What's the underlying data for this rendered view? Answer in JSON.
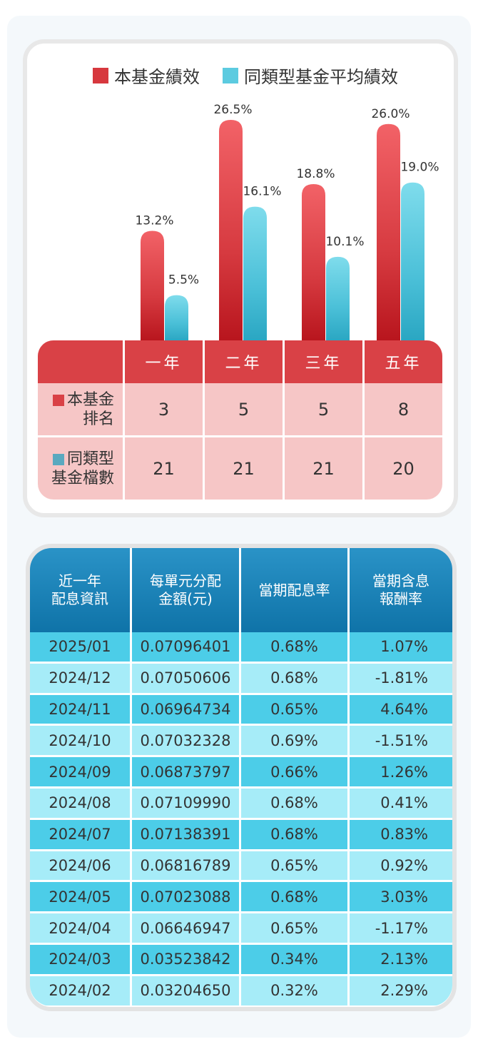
{
  "chart_data": {
    "type": "bar",
    "categories": [
      "一年",
      "二年",
      "三年",
      "五年"
    ],
    "series": [
      {
        "name": "本基金績效",
        "values": [
          13.2,
          26.5,
          18.8,
          26.0
        ],
        "labels": [
          "13.2%",
          "26.5%",
          "18.8%",
          "26.0%"
        ],
        "color": "#e2444a"
      },
      {
        "name": "同類型基金平均績效",
        "values": [
          5.5,
          16.1,
          10.1,
          19.0
        ],
        "labels": [
          "5.5%",
          "16.1%",
          "10.1%",
          "19.0%"
        ],
        "color": "#5ccbe0"
      }
    ],
    "legend": "top"
  },
  "ranking": {
    "header": [
      "",
      "一年",
      "二年",
      "三年",
      "五年"
    ],
    "rows": [
      {
        "label_lines": [
          "本基金",
          "排名"
        ],
        "color": "#d94146",
        "values": [
          "3",
          "5",
          "5",
          "8"
        ]
      },
      {
        "label_lines": [
          "同類型",
          "基金檔數"
        ],
        "color": "#5aa9bf",
        "values": [
          "21",
          "21",
          "21",
          "20"
        ]
      }
    ]
  },
  "distribution": {
    "headers": [
      [
        "近一年",
        "配息資訊"
      ],
      [
        "每單元分配",
        "金額(元)"
      ],
      [
        "當期配息率"
      ],
      [
        "當期含息",
        "報酬率"
      ]
    ],
    "rows": [
      [
        "2025/01",
        "0.07096401",
        "0.68%",
        "1.07%"
      ],
      [
        "2024/12",
        "0.07050606",
        "0.68%",
        "-1.81%"
      ],
      [
        "2024/11",
        "0.06964734",
        "0.65%",
        "4.64%"
      ],
      [
        "2024/10",
        "0.07032328",
        "0.69%",
        "-1.51%"
      ],
      [
        "2024/09",
        "0.06873797",
        "0.66%",
        "1.26%"
      ],
      [
        "2024/08",
        "0.07109990",
        "0.68%",
        "0.41%"
      ],
      [
        "2024/07",
        "0.07138391",
        "0.68%",
        "0.83%"
      ],
      [
        "2024/06",
        "0.06816789",
        "0.65%",
        "0.92%"
      ],
      [
        "2024/05",
        "0.07023088",
        "0.68%",
        "3.03%"
      ],
      [
        "2024/04",
        "0.06646947",
        "0.65%",
        "-1.17%"
      ],
      [
        "2024/03",
        "0.03523842",
        "0.34%",
        "2.13%"
      ],
      [
        "2024/02",
        "0.03204650",
        "0.32%",
        "2.29%"
      ]
    ],
    "row_colors": [
      "#4ccde8",
      "#a6ecf8"
    ]
  }
}
